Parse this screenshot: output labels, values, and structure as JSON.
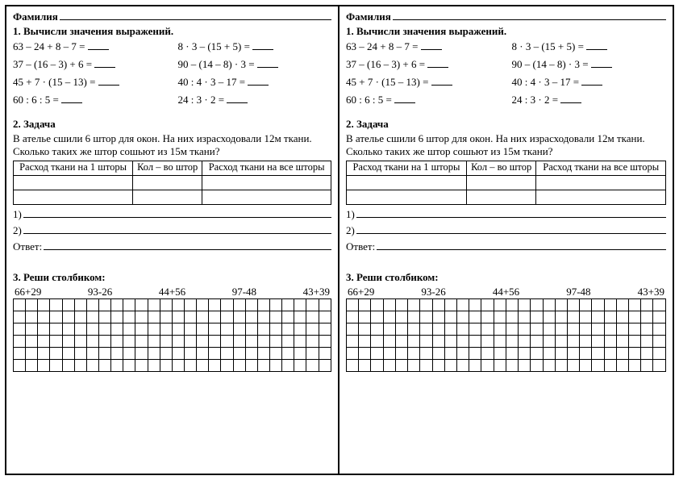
{
  "surname_label": "Фамилия",
  "section1_title": "1. Вычисли значения выражений.",
  "expressions": {
    "e1": "63 – 24 + 8 – 7 = ",
    "e2": "8 · 3 – (15 + 5) = ",
    "e3": "37 – (16 – 3) + 6 = ",
    "e4": "90 – (14 – 8) · 3 = ",
    "e5": "45 + 7 · (15 – 13) = ",
    "e6": "40 : 4 · 3 – 17 = ",
    "e7": "60 : 6 : 5 = ",
    "e8": "24 : 3 · 2 = "
  },
  "section2_title": "2. Задача",
  "task2_text": "В ателье сшили 6 штор для окон. На них израсходовали 12м ткани. Сколько таких же штор сошьют из 15м ткани?",
  "table_headers": {
    "h1": "Расход ткани на 1 шторы",
    "h2": "Кол – во штор",
    "h3": "Расход ткани на все шторы"
  },
  "line1_label": "1)",
  "line2_label": "2)",
  "answer_label": "Ответ:",
  "section3_title": "3. Реши столбиком:",
  "columns": {
    "c1": "66+29",
    "c2": "93-26",
    "c3": "44+56",
    "c4": "97-48",
    "c5": "43+39"
  },
  "grid": {
    "rows": 6,
    "cols": 26
  }
}
